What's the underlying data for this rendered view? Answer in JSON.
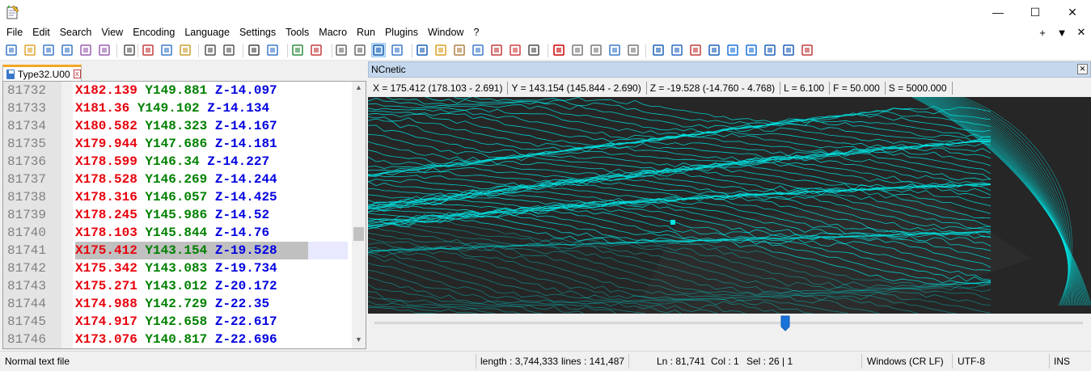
{
  "menu": [
    "File",
    "Edit",
    "Search",
    "View",
    "Encoding",
    "Language",
    "Settings",
    "Tools",
    "Macro",
    "Run",
    "Plugins",
    "Window",
    "?"
  ],
  "menu_right": [
    "+",
    "▼",
    "✕"
  ],
  "window_controls": {
    "minimize": "—",
    "maximize": "☐",
    "close": "✕"
  },
  "tab": {
    "label": "Type32.U00",
    "close": "x"
  },
  "editor": {
    "lines": [
      {
        "num": "81732",
        "x": "X182.139",
        "y": "Y149.881",
        "z": "Z-14.097"
      },
      {
        "num": "81733",
        "x": "X181.36",
        "y": "Y149.102",
        "z": "Z-14.134"
      },
      {
        "num": "81734",
        "x": "X180.582",
        "y": "Y148.323",
        "z": "Z-14.167"
      },
      {
        "num": "81735",
        "x": "X179.944",
        "y": "Y147.686",
        "z": "Z-14.181"
      },
      {
        "num": "81736",
        "x": "X178.599",
        "y": "Y146.34",
        "z": "Z-14.227"
      },
      {
        "num": "81737",
        "x": "X178.528",
        "y": "Y146.269",
        "z": "Z-14.244"
      },
      {
        "num": "81738",
        "x": "X178.316",
        "y": "Y146.057",
        "z": "Z-14.425"
      },
      {
        "num": "81739",
        "x": "X178.245",
        "y": "Y145.986",
        "z": "Z-14.52"
      },
      {
        "num": "81740",
        "x": "X178.103",
        "y": "Y145.844",
        "z": "Z-14.76"
      },
      {
        "num": "81741",
        "x": "X175.412",
        "y": "Y143.154",
        "z": "Z-19.528"
      },
      {
        "num": "81742",
        "x": "X175.342",
        "y": "Y143.083",
        "z": "Z-19.734"
      },
      {
        "num": "81743",
        "x": "X175.271",
        "y": "Y143.012",
        "z": "Z-20.172"
      },
      {
        "num": "81744",
        "x": "X174.988",
        "y": "Y142.729",
        "z": "Z-22.35"
      },
      {
        "num": "81745",
        "x": "X174.917",
        "y": "Y142.658",
        "z": "Z-22.617"
      },
      {
        "num": "81746",
        "x": "X173.076",
        "y": "Y140.817",
        "z": "Z-22.696"
      }
    ],
    "current_line_index": 9
  },
  "ncnetic": {
    "title": "NCnetic",
    "fields": {
      "x": "X = 175.412 (178.103 - 2.691)",
      "y": "Y = 143.154 (145.844 - 2.690)",
      "z": "Z = -19.528 (-14.760 - 4.768)",
      "l": "L = 6.100",
      "f": "F = 50.000",
      "s": "S = 5000.000"
    },
    "slider_position": 0.58,
    "toolpath_color": "#00e5e5",
    "background_color": "#262626"
  },
  "status": {
    "file_type": "Normal text file",
    "length": "length : 3,744,333",
    "lines": "lines : 141,487",
    "ln": "Ln : 81,741",
    "col": "Col : 1",
    "sel": "Sel : 26 | 1",
    "eol": "Windows (CR LF)",
    "encoding": "UTF-8",
    "mode": "INS"
  },
  "toolbar_icons": [
    "new-file-icon",
    "open-file-icon",
    "save-icon",
    "save-all-icon",
    "close-icon",
    "close-all-icon",
    "print-icon",
    "cut-icon",
    "copy-icon",
    "paste-icon",
    "undo-icon",
    "redo-icon",
    "find-icon",
    "replace-icon",
    "zoom-in-icon",
    "zoom-out-icon",
    "sync-vertical-icon",
    "sync-horizontal-icon",
    "word-wrap-icon",
    "show-all-chars-icon",
    "indent-guide-icon",
    "udl-icon",
    "doc-map-icon",
    "doc-list-icon",
    "function-list-icon",
    "folder-workspace-icon",
    "monitoring-icon",
    "record-macro-icon",
    "stop-macro-icon",
    "play-macro-icon",
    "run-macro-multiple-icon",
    "save-macro-icon",
    "nc-icon-1",
    "nc-icon-2",
    "nc-icon-3",
    "nc-icon-4",
    "nc-up-icon",
    "nc-down-icon",
    "nc-icon-7",
    "nc-icon-8",
    "nc-icon-9"
  ]
}
